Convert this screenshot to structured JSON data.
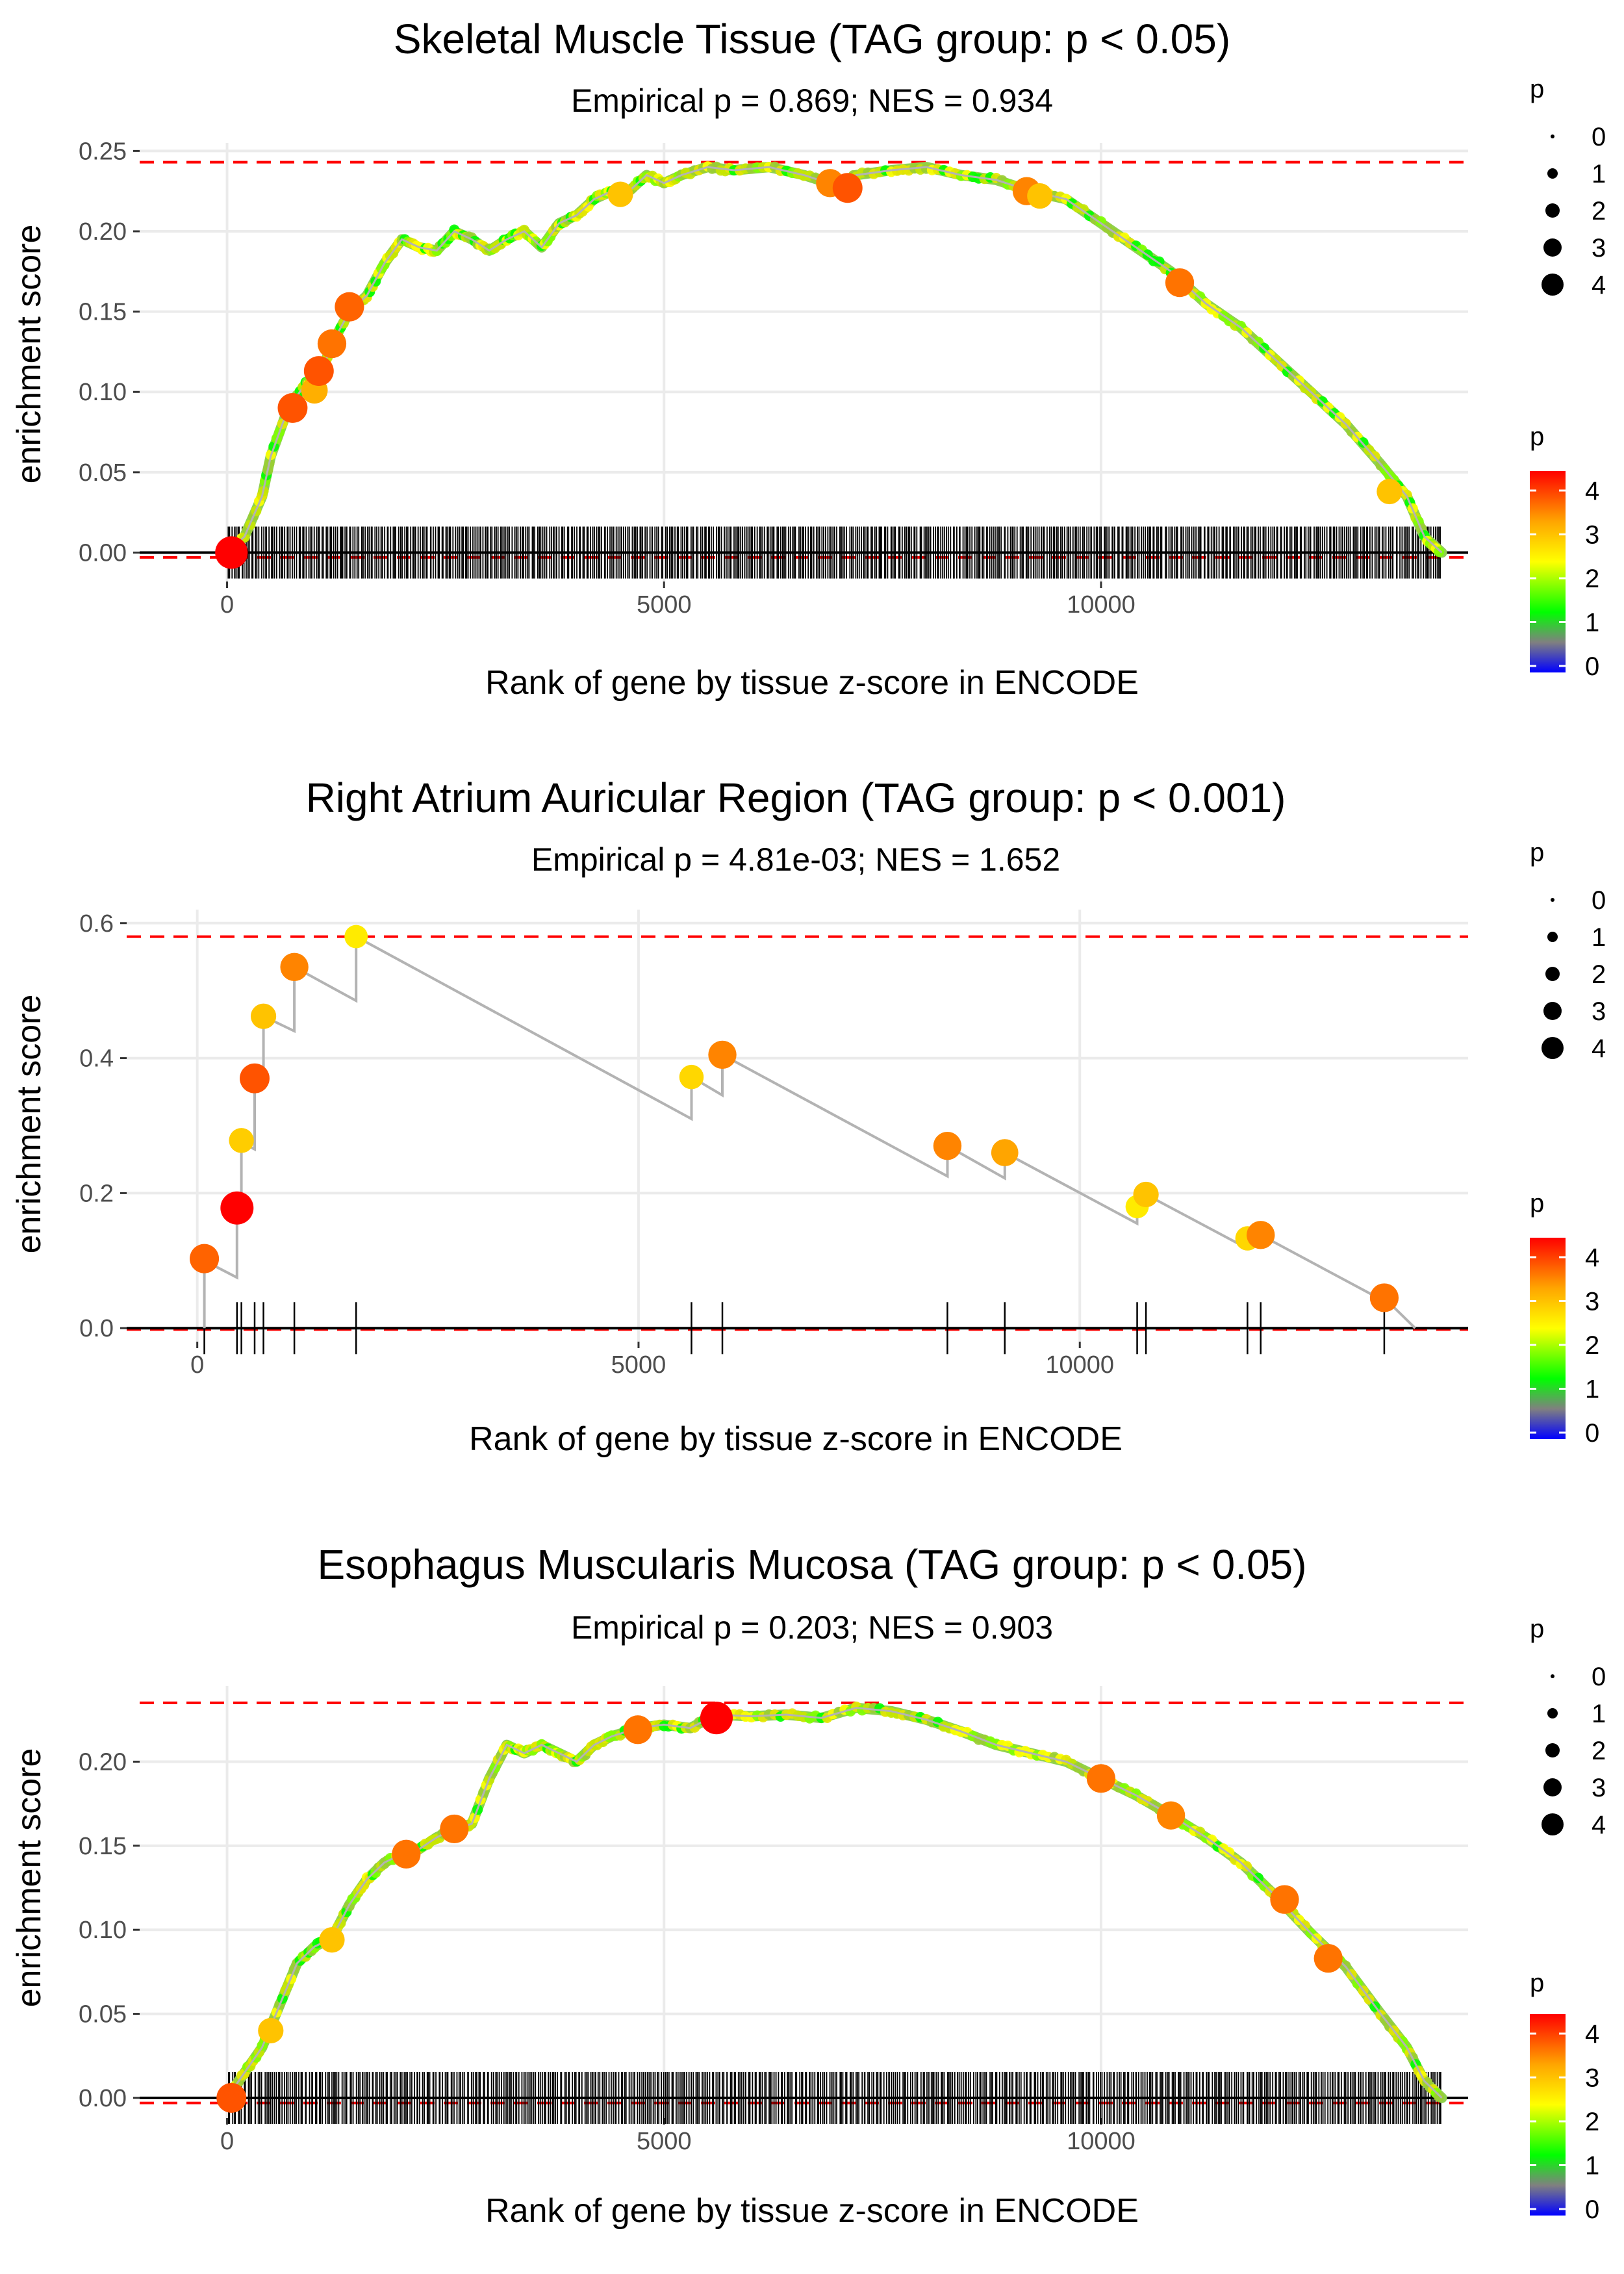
{
  "chart_data": [
    {
      "type": "line",
      "title": "Skeletal Muscle Tissue (TAG group: p < 0.05)",
      "subtitle": "Empirical p = 0.869; NES = 0.934",
      "xlabel": "Rank of gene by tissue z-score in ENCODE",
      "ylabel": "enrichment score",
      "xlim": [
        -1000,
        14200
      ],
      "ylim": [
        -0.018,
        0.255
      ],
      "xticks": [
        0,
        5000,
        10000
      ],
      "xtick_labels": [
        "0",
        "5000",
        "10000"
      ],
      "yticks": [
        0.0,
        0.05,
        0.1,
        0.15,
        0.2,
        0.25
      ],
      "ytick_labels": [
        "0.00",
        "0.05",
        "0.10",
        "0.15",
        "0.20",
        "0.25"
      ],
      "max_es": 0.243,
      "min_es": -0.003,
      "n_hits": 620,
      "hit_range": [
        0,
        13900
      ],
      "curve": [
        [
          0,
          0
        ],
        [
          200,
          0.01
        ],
        [
          400,
          0.035
        ],
        [
          500,
          0.06
        ],
        [
          700,
          0.09
        ],
        [
          900,
          0.105
        ],
        [
          1000,
          0.108
        ],
        [
          1100,
          0.115
        ],
        [
          1200,
          0.13
        ],
        [
          1400,
          0.15
        ],
        [
          1600,
          0.16
        ],
        [
          1800,
          0.18
        ],
        [
          2000,
          0.195
        ],
        [
          2200,
          0.19
        ],
        [
          2400,
          0.188
        ],
        [
          2600,
          0.2
        ],
        [
          2800,
          0.195
        ],
        [
          3000,
          0.188
        ],
        [
          3200,
          0.195
        ],
        [
          3400,
          0.2
        ],
        [
          3600,
          0.19
        ],
        [
          3800,
          0.205
        ],
        [
          4000,
          0.21
        ],
        [
          4200,
          0.22
        ],
        [
          4400,
          0.225
        ],
        [
          4600,
          0.225
        ],
        [
          4800,
          0.235
        ],
        [
          5000,
          0.23
        ],
        [
          5200,
          0.235
        ],
        [
          5500,
          0.24
        ],
        [
          5800,
          0.238
        ],
        [
          6200,
          0.24
        ],
        [
          6600,
          0.235
        ],
        [
          7000,
          0.228
        ],
        [
          7200,
          0.235
        ],
        [
          7600,
          0.238
        ],
        [
          8000,
          0.24
        ],
        [
          8400,
          0.235
        ],
        [
          8800,
          0.232
        ],
        [
          9200,
          0.225
        ],
        [
          9600,
          0.22
        ],
        [
          10000,
          0.205
        ],
        [
          10400,
          0.19
        ],
        [
          10800,
          0.175
        ],
        [
          11200,
          0.155
        ],
        [
          11600,
          0.14
        ],
        [
          12000,
          0.12
        ],
        [
          12400,
          0.1
        ],
        [
          12800,
          0.08
        ],
        [
          13200,
          0.055
        ],
        [
          13500,
          0.035
        ],
        [
          13700,
          0.01
        ],
        [
          13900,
          0
        ]
      ],
      "highlight_points": [
        {
          "x": 50,
          "y": 0,
          "p": 4.3
        },
        {
          "x": 750,
          "y": 0.09,
          "p": 3.8
        },
        {
          "x": 1000,
          "y": 0.101,
          "p": 3.2
        },
        {
          "x": 1050,
          "y": 0.113,
          "p": 3.8
        },
        {
          "x": 1200,
          "y": 0.13,
          "p": 3.6
        },
        {
          "x": 1400,
          "y": 0.153,
          "p": 3.7
        },
        {
          "x": 4500,
          "y": 0.223,
          "p": 3.0
        },
        {
          "x": 6900,
          "y": 0.23,
          "p": 3.5
        },
        {
          "x": 7100,
          "y": 0.227,
          "p": 3.8
        },
        {
          "x": 9150,
          "y": 0.225,
          "p": 3.5
        },
        {
          "x": 9300,
          "y": 0.222,
          "p": 3.0
        },
        {
          "x": 10900,
          "y": 0.168,
          "p": 3.6
        },
        {
          "x": 13300,
          "y": 0.038,
          "p": 3.0
        }
      ]
    },
    {
      "type": "line",
      "title": "Right Atrium Auricular Region (TAG group: p < 0.001)",
      "subtitle": "Empirical p = 4.81e-03; NES = 1.652",
      "xlabel": "Rank of gene by tissue z-score in ENCODE",
      "ylabel": "enrichment score",
      "xlim": [
        -800,
        14400
      ],
      "ylim": [
        -0.02,
        0.62
      ],
      "xticks": [
        0,
        5000,
        10000
      ],
      "xtick_labels": [
        "0",
        "5000",
        "10000"
      ],
      "yticks": [
        0.0,
        0.2,
        0.4,
        0.6
      ],
      "ytick_labels": [
        "0.0",
        "0.2",
        "0.4",
        "0.6"
      ],
      "max_es": 0.58,
      "min_es": -0.002,
      "curve": [
        [
          80,
          0.0
        ],
        [
          80,
          0.1
        ],
        [
          450,
          0.075
        ],
        [
          450,
          0.178
        ],
        [
          500,
          0.175
        ],
        [
          500,
          0.275
        ],
        [
          650,
          0.265
        ],
        [
          650,
          0.37
        ],
        [
          750,
          0.36
        ],
        [
          750,
          0.462
        ],
        [
          1100,
          0.44
        ],
        [
          1100,
          0.535
        ],
        [
          1800,
          0.485
        ],
        [
          1800,
          0.58
        ],
        [
          5600,
          0.31
        ],
        [
          5600,
          0.372
        ],
        [
          5950,
          0.345
        ],
        [
          5950,
          0.405
        ],
        [
          8500,
          0.225
        ],
        [
          8500,
          0.27
        ],
        [
          9150,
          0.222
        ],
        [
          9150,
          0.26
        ],
        [
          10650,
          0.155
        ],
        [
          10650,
          0.18
        ],
        [
          10750,
          0.175
        ],
        [
          10750,
          0.198
        ],
        [
          11900,
          0.118
        ],
        [
          11900,
          0.133
        ],
        [
          12050,
          0.123
        ],
        [
          12050,
          0.138
        ],
        [
          13450,
          0.04
        ],
        [
          13450,
          0.045
        ],
        [
          13800,
          0.0
        ]
      ],
      "points": [
        {
          "x": 80,
          "y": 0.103,
          "p": 3.7
        },
        {
          "x": 450,
          "y": 0.178,
          "p": 4.4
        },
        {
          "x": 500,
          "y": 0.278,
          "p": 2.9
        },
        {
          "x": 650,
          "y": 0.37,
          "p": 3.8
        },
        {
          "x": 750,
          "y": 0.462,
          "p": 3.0
        },
        {
          "x": 1100,
          "y": 0.535,
          "p": 3.5
        },
        {
          "x": 1800,
          "y": 0.58,
          "p": 2.6
        },
        {
          "x": 5600,
          "y": 0.372,
          "p": 2.8
        },
        {
          "x": 5950,
          "y": 0.405,
          "p": 3.5
        },
        {
          "x": 8500,
          "y": 0.27,
          "p": 3.5
        },
        {
          "x": 9150,
          "y": 0.26,
          "p": 3.3
        },
        {
          "x": 10650,
          "y": 0.18,
          "p": 2.6
        },
        {
          "x": 10750,
          "y": 0.198,
          "p": 3.0
        },
        {
          "x": 11900,
          "y": 0.133,
          "p": 2.8
        },
        {
          "x": 12050,
          "y": 0.138,
          "p": 3.5
        },
        {
          "x": 13450,
          "y": 0.045,
          "p": 3.6
        }
      ],
      "hits": [
        80,
        450,
        500,
        650,
        750,
        1100,
        1800,
        5600,
        5950,
        8500,
        9150,
        10650,
        10750,
        11900,
        12050,
        13450
      ]
    },
    {
      "type": "line",
      "title": "Esophagus Muscularis Mucosa (TAG group: p < 0.05)",
      "subtitle": "Empirical p = 0.203; NES = 0.903",
      "xlabel": "Rank of gene by tissue z-score in ENCODE",
      "ylabel": "enrichment score",
      "xlim": [
        -1000,
        14200
      ],
      "ylim": [
        -0.012,
        0.245
      ],
      "xticks": [
        0,
        5000,
        10000
      ],
      "xtick_labels": [
        "0",
        "5000",
        "10000"
      ],
      "yticks": [
        0.0,
        0.05,
        0.1,
        0.15,
        0.2
      ],
      "ytick_labels": [
        "0.00",
        "0.05",
        "0.10",
        "0.15",
        "0.20"
      ],
      "max_es": 0.235,
      "min_es": -0.003,
      "n_hits": 600,
      "hit_range": [
        0,
        13900
      ],
      "curve": [
        [
          0,
          0
        ],
        [
          200,
          0.015
        ],
        [
          400,
          0.03
        ],
        [
          600,
          0.055
        ],
        [
          800,
          0.08
        ],
        [
          1000,
          0.09
        ],
        [
          1200,
          0.095
        ],
        [
          1400,
          0.115
        ],
        [
          1600,
          0.13
        ],
        [
          1800,
          0.14
        ],
        [
          2000,
          0.145
        ],
        [
          2200,
          0.148
        ],
        [
          2400,
          0.155
        ],
        [
          2600,
          0.16
        ],
        [
          2800,
          0.163
        ],
        [
          3000,
          0.19
        ],
        [
          3200,
          0.21
        ],
        [
          3400,
          0.205
        ],
        [
          3600,
          0.21
        ],
        [
          3800,
          0.205
        ],
        [
          4000,
          0.2
        ],
        [
          4200,
          0.21
        ],
        [
          4400,
          0.215
        ],
        [
          4700,
          0.22
        ],
        [
          5000,
          0.222
        ],
        [
          5300,
          0.22
        ],
        [
          5600,
          0.228
        ],
        [
          6000,
          0.227
        ],
        [
          6400,
          0.228
        ],
        [
          6800,
          0.226
        ],
        [
          7200,
          0.232
        ],
        [
          7600,
          0.23
        ],
        [
          8000,
          0.225
        ],
        [
          8400,
          0.218
        ],
        [
          8800,
          0.21
        ],
        [
          9200,
          0.205
        ],
        [
          9600,
          0.2
        ],
        [
          10000,
          0.19
        ],
        [
          10400,
          0.18
        ],
        [
          10800,
          0.168
        ],
        [
          11200,
          0.155
        ],
        [
          11600,
          0.14
        ],
        [
          12000,
          0.12
        ],
        [
          12400,
          0.098
        ],
        [
          12800,
          0.078
        ],
        [
          13200,
          0.05
        ],
        [
          13500,
          0.03
        ],
        [
          13700,
          0.01
        ],
        [
          13900,
          0
        ]
      ],
      "highlight_points": [
        {
          "x": 50,
          "y": 0,
          "p": 3.8
        },
        {
          "x": 500,
          "y": 0.04,
          "p": 3.0
        },
        {
          "x": 1200,
          "y": 0.094,
          "p": 3.0
        },
        {
          "x": 2050,
          "y": 0.145,
          "p": 3.6
        },
        {
          "x": 2600,
          "y": 0.16,
          "p": 3.6
        },
        {
          "x": 4700,
          "y": 0.219,
          "p": 3.6
        },
        {
          "x": 5600,
          "y": 0.226,
          "p": 4.3
        },
        {
          "x": 10000,
          "y": 0.19,
          "p": 3.6
        },
        {
          "x": 10800,
          "y": 0.168,
          "p": 3.5
        },
        {
          "x": 12100,
          "y": 0.118,
          "p": 3.6
        },
        {
          "x": 12600,
          "y": 0.083,
          "p": 3.6
        }
      ]
    }
  ],
  "legends": {
    "size_title": "p",
    "size_labels": [
      "0",
      "1",
      "2",
      "3",
      "4"
    ],
    "color_title": "p",
    "color_labels": [
      "4",
      "3",
      "2",
      "1",
      "0"
    ]
  },
  "colors": {
    "max_line": "#ff0000",
    "curve_gray": "#b3b3b3",
    "gradient_stops": [
      "#ff0000",
      "#ffa500",
      "#ffff00",
      "#00ff00",
      "#808080",
      "#0000ff"
    ]
  }
}
